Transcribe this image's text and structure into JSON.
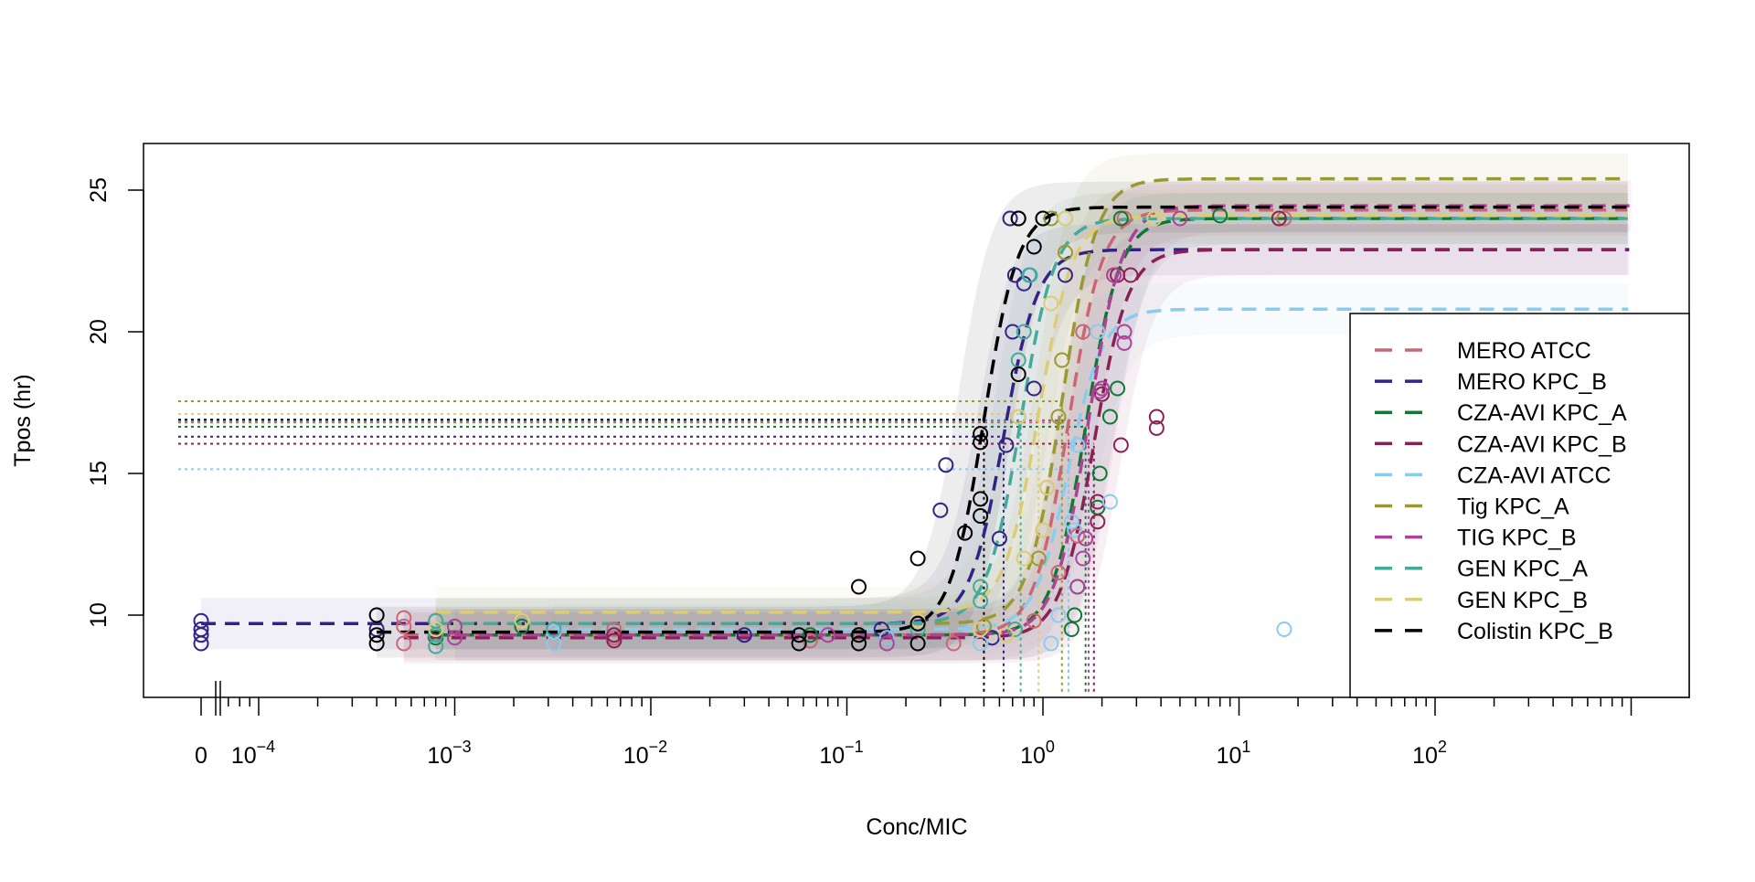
{
  "chart_data": {
    "type": "scatter",
    "title": "",
    "xlabel": "Conc/MIC",
    "ylabel": "Tpos (hr)",
    "xscale": "log (with 0 shown at left, axis break)",
    "xlim": [
      0,
      2000
    ],
    "ylim": [
      7,
      26.6
    ],
    "y_ticks": [
      10,
      15,
      20,
      25
    ],
    "x_tick_labels": [
      {
        "value": 0,
        "base": "0",
        "exp": ""
      },
      {
        "value": 0.0001,
        "base": "10",
        "exp": "−4"
      },
      {
        "value": 0.001,
        "base": "10",
        "exp": "−3"
      },
      {
        "value": 0.01,
        "base": "10",
        "exp": "−2"
      },
      {
        "value": 0.1,
        "base": "10",
        "exp": "−1"
      },
      {
        "value": 1,
        "base": "10",
        "exp": "0"
      },
      {
        "value": 10,
        "base": "10",
        "exp": "1"
      },
      {
        "value": 100,
        "base": "10",
        "exp": "2"
      }
    ],
    "legend_position": "bottom-right",
    "fit_model": "4-parameter logistic; dotted lines mark EC50",
    "series": [
      {
        "name": "MERO ATCC",
        "color": "#CC6677",
        "low": 9.3,
        "high": 24.3,
        "ec50": 1.35,
        "start": 0.00055,
        "points": [
          [
            0.00055,
            9.0
          ],
          [
            0.00055,
            9.6
          ],
          [
            0.00055,
            9.9
          ],
          [
            0.0065,
            9.2
          ],
          [
            0.0065,
            9.5
          ],
          [
            0.065,
            9.1
          ],
          [
            0.35,
            9.0
          ],
          [
            0.9,
            9.8
          ],
          [
            1.2,
            11.5
          ],
          [
            1.5,
            12.8
          ],
          [
            1.6,
            20
          ],
          [
            2.3,
            22
          ],
          [
            2.6,
            24
          ],
          [
            17,
            24
          ]
        ]
      },
      {
        "name": "MERO KPC_B",
        "color": "#332288",
        "low": 9.7,
        "high": 22.9,
        "ec50": 0.63,
        "start": 0,
        "points": [
          [
            0,
            9.0
          ],
          [
            0,
            9.3
          ],
          [
            0,
            9.5
          ],
          [
            0,
            9.8
          ],
          [
            0.0004,
            9.5
          ],
          [
            0.03,
            9.3
          ],
          [
            0.15,
            9.5
          ],
          [
            0.3,
            13.7
          ],
          [
            0.32,
            15.3
          ],
          [
            0.55,
            9.2
          ],
          [
            0.6,
            12.7
          ],
          [
            0.65,
            16
          ],
          [
            0.68,
            24
          ],
          [
            0.7,
            20
          ],
          [
            0.72,
            22
          ],
          [
            0.75,
            24
          ],
          [
            0.8,
            21.7
          ],
          [
            0.9,
            18
          ],
          [
            1.3,
            22
          ]
        ]
      },
      {
        "name": "CZA-AVI KPC_A",
        "color": "#117733",
        "low": 9.3,
        "high": 24.0,
        "ec50": 1.65,
        "start": 0.0008,
        "points": [
          [
            0.0008,
            9.2
          ],
          [
            0.0022,
            9.6
          ],
          [
            0.065,
            9.3
          ],
          [
            1.4,
            9.5
          ],
          [
            1.45,
            10
          ],
          [
            1.5,
            11
          ],
          [
            1.9,
            13.8
          ],
          [
            1.95,
            15
          ],
          [
            2.2,
            17
          ],
          [
            2.4,
            18
          ],
          [
            2.5,
            24
          ],
          [
            8,
            24.1
          ]
        ]
      },
      {
        "name": "CZA-AVI KPC_B",
        "color": "#882255",
        "low": 9.2,
        "high": 22.9,
        "ec50": 1.82,
        "start": 0.00055,
        "points": [
          [
            0.0065,
            9.1
          ],
          [
            0.0065,
            9.3
          ],
          [
            0.16,
            9.2
          ],
          [
            1.9,
            13.3
          ],
          [
            1.9,
            14
          ],
          [
            2.0,
            17.8
          ],
          [
            2.4,
            22
          ],
          [
            2.5,
            16
          ],
          [
            2.8,
            22
          ],
          [
            3.8,
            17
          ],
          [
            3.8,
            16.6
          ],
          [
            16,
            24
          ]
        ]
      },
      {
        "name": "CZA-AVI ATCC",
        "color": "#88CCEE",
        "low": 9.5,
        "high": 20.8,
        "ec50": 1.35,
        "start": 0.0032,
        "points": [
          [
            0.0032,
            9.0
          ],
          [
            0.0032,
            9.4
          ],
          [
            0.16,
            9.2
          ],
          [
            0.48,
            9.0
          ],
          [
            1.1,
            9.0
          ],
          [
            1.2,
            10
          ],
          [
            1.4,
            13.3
          ],
          [
            1.45,
            13
          ],
          [
            1.5,
            16
          ],
          [
            1.9,
            20
          ],
          [
            2.2,
            14
          ],
          [
            17,
            9.5
          ],
          [
            1.3,
            24
          ]
        ]
      },
      {
        "name": "Tig KPC_A",
        "color": "#999933",
        "low": 9.7,
        "high": 25.4,
        "ec50": 1.25,
        "start": 0.0008,
        "points": [
          [
            0.0008,
            9.8
          ],
          [
            0.5,
            9.6
          ],
          [
            0.95,
            12
          ],
          [
            1.0,
            13
          ],
          [
            1.05,
            14.5
          ],
          [
            1.2,
            17
          ],
          [
            1.25,
            19
          ],
          [
            1.3,
            22.8
          ],
          [
            1.1,
            24
          ]
        ]
      },
      {
        "name": "TIG KPC_B",
        "color": "#AA4499",
        "low": 9.3,
        "high": 24.45,
        "ec50": 1.71,
        "start": 0.001,
        "points": [
          [
            0.001,
            9.2
          ],
          [
            0.001,
            9.6
          ],
          [
            0.08,
            9.3
          ],
          [
            0.16,
            9.0
          ],
          [
            1.5,
            11
          ],
          [
            1.6,
            12
          ],
          [
            1.65,
            12.7
          ],
          [
            1.95,
            17.9
          ],
          [
            2.0,
            18
          ],
          [
            2.3,
            22
          ],
          [
            2.6,
            20
          ],
          [
            2.6,
            19.6
          ],
          [
            5,
            24
          ]
        ]
      },
      {
        "name": "GEN KPC_A",
        "color": "#44AA99",
        "low": 9.7,
        "high": 24.0,
        "ec50": 0.77,
        "start": 0.0008,
        "points": [
          [
            0.0008,
            8.9
          ],
          [
            0.0008,
            9.3
          ],
          [
            0.0008,
            9.8
          ],
          [
            0.0032,
            9.5
          ],
          [
            0.23,
            9.5
          ],
          [
            0.48,
            10.5
          ],
          [
            0.48,
            11
          ],
          [
            0.72,
            9.5
          ],
          [
            0.75,
            17
          ],
          [
            0.75,
            19
          ],
          [
            0.8,
            20
          ],
          [
            0.85,
            22
          ],
          [
            0.86,
            22
          ],
          [
            1.0,
            24
          ]
        ]
      },
      {
        "name": "GEN KPC_B",
        "color": "#DDCC77",
        "low": 10.1,
        "high": 24.1,
        "ec50": 0.95,
        "start": 0.0008,
        "points": [
          [
            0.0008,
            9.5
          ],
          [
            0.0022,
            9.8
          ],
          [
            0.23,
            9.8
          ],
          [
            0.48,
            9.5
          ],
          [
            0.65,
            9.3
          ],
          [
            0.75,
            17
          ],
          [
            0.8,
            12
          ],
          [
            1.0,
            13
          ],
          [
            1.05,
            14.5
          ],
          [
            1.1,
            21
          ],
          [
            1.3,
            24
          ],
          [
            3.7,
            24
          ]
        ]
      },
      {
        "name": "Colistin KPC_B",
        "color": "#000000",
        "low": 9.4,
        "high": 24.4,
        "ec50": 0.5,
        "start": 0.0004,
        "points": [
          [
            0.0004,
            9.0
          ],
          [
            0.0004,
            9.3
          ],
          [
            0.0004,
            10
          ],
          [
            0.057,
            9.0
          ],
          [
            0.057,
            9.3
          ],
          [
            0.115,
            9.0
          ],
          [
            0.115,
            9.3
          ],
          [
            0.115,
            11
          ],
          [
            0.23,
            9.0
          ],
          [
            0.23,
            9.7
          ],
          [
            0.23,
            12
          ],
          [
            0.4,
            12.9
          ],
          [
            0.48,
            13.5
          ],
          [
            0.48,
            14.1
          ],
          [
            0.48,
            16.1
          ],
          [
            0.48,
            16.4
          ],
          [
            0.75,
            18.5
          ],
          [
            0.75,
            24
          ],
          [
            0.9,
            23
          ],
          [
            1.0,
            24
          ]
        ]
      }
    ]
  }
}
